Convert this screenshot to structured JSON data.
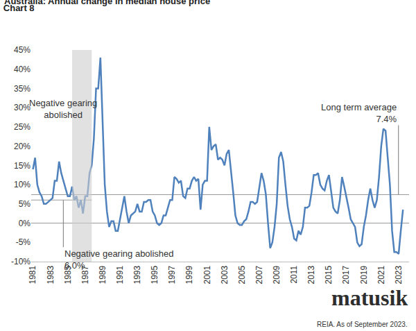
{
  "chart_data": {
    "type": "line",
    "title": "Chart 8",
    "subtitle": "Australia: Annual change in median house price",
    "source": "REIA. As of September 2023.",
    "logo": "matusik",
    "color": "#4f81bd",
    "grid": false,
    "xlim": [
      1980.8,
      2024.2
    ],
    "xticks": [
      1981,
      1983,
      1985,
      1987,
      1989,
      1991,
      1993,
      1995,
      1997,
      1999,
      2001,
      2003,
      2005,
      2007,
      2009,
      2011,
      2013,
      2015,
      2017,
      2019,
      2021,
      2023
    ],
    "ylim": [
      -10,
      45
    ],
    "yticks": [
      {
        "value": -10,
        "label": "-10%"
      },
      {
        "value": -5,
        "label": "-5%"
      },
      {
        "value": 0,
        "label": "0%"
      },
      {
        "value": 5,
        "label": "5%"
      },
      {
        "value": 10,
        "label": "10%"
      },
      {
        "value": 15,
        "label": "15%"
      },
      {
        "value": 20,
        "label": "20%"
      },
      {
        "value": 25,
        "label": "25%"
      },
      {
        "value": 30,
        "label": "30%"
      },
      {
        "value": 35,
        "label": "35%"
      },
      {
        "value": 40,
        "label": "40%"
      },
      {
        "value": 45,
        "label": "45%"
      }
    ],
    "shaded_period": {
      "label": "Negative gearing abolished",
      "x": [
        1985.5,
        1987.75
      ]
    },
    "negative_gearing_level": {
      "label": "Negative gearing abolished",
      "value": 6.0,
      "value_label": "6.0%"
    },
    "average": {
      "label": "Long term average",
      "value": 7.4,
      "value_label": "7.4%"
    },
    "x": [
      1981,
      1981.25,
      1981.5,
      1981.75,
      1982,
      1982.25,
      1982.5,
      1982.75,
      1983,
      1983.25,
      1983.5,
      1983.75,
      1984,
      1984.25,
      1984.5,
      1984.75,
      1985,
      1985.25,
      1985.5,
      1985.75,
      1986,
      1986.25,
      1986.5,
      1986.75,
      1987,
      1987.25,
      1987.5,
      1987.75,
      1988,
      1988.25,
      1988.5,
      1988.75,
      1989,
      1989.25,
      1989.5,
      1989.75,
      1990,
      1990.25,
      1990.5,
      1990.75,
      1991,
      1991.25,
      1991.5,
      1991.75,
      1992,
      1992.25,
      1992.5,
      1992.75,
      1993,
      1993.25,
      1993.5,
      1993.75,
      1994,
      1994.25,
      1994.5,
      1994.75,
      1995,
      1995.25,
      1995.5,
      1995.75,
      1996,
      1996.25,
      1996.5,
      1996.75,
      1997,
      1997.25,
      1997.5,
      1997.75,
      1998,
      1998.25,
      1998.5,
      1998.75,
      1999,
      1999.25,
      1999.5,
      1999.75,
      2000,
      2000.25,
      2000.5,
      2000.75,
      2001,
      2001.25,
      2001.5,
      2001.75,
      2002,
      2002.25,
      2002.5,
      2002.75,
      2003,
      2003.25,
      2003.5,
      2003.75,
      2004,
      2004.25,
      2004.5,
      2004.75,
      2005,
      2005.25,
      2005.5,
      2005.75,
      2006,
      2006.25,
      2006.5,
      2006.75,
      2007,
      2007.25,
      2007.5,
      2007.75,
      2008,
      2008.25,
      2008.5,
      2008.75,
      2009,
      2009.25,
      2009.5,
      2009.75,
      2010,
      2010.25,
      2010.5,
      2010.75,
      2011,
      2011.25,
      2011.5,
      2011.75,
      2012,
      2012.25,
      2012.5,
      2012.75,
      2013,
      2013.25,
      2013.5,
      2013.75,
      2014,
      2014.25,
      2014.5,
      2014.75,
      2015,
      2015.25,
      2015.5,
      2015.75,
      2016,
      2016.25,
      2016.5,
      2016.75,
      2017,
      2017.25,
      2017.5,
      2017.75,
      2018,
      2018.25,
      2018.5,
      2018.75,
      2019,
      2019.25,
      2019.5,
      2019.75,
      2020,
      2020.25,
      2020.5,
      2020.75,
      2021,
      2021.25,
      2021.5,
      2021.75,
      2022,
      2022.25,
      2022.5,
      2022.75,
      2023,
      2023.25,
      2023.5
    ],
    "values": [
      14,
      17,
      10,
      8,
      7,
      5,
      5,
      5.5,
      6,
      6.5,
      11,
      11,
      16,
      13,
      11,
      9,
      7,
      7,
      9.5,
      6,
      7,
      4,
      6,
      2.5,
      7,
      7,
      13,
      15,
      22,
      35,
      35,
      43,
      25,
      10,
      3,
      -1,
      0.5,
      0.5,
      -2,
      -2,
      1,
      4,
      7,
      3,
      0,
      2,
      2.5,
      3,
      5,
      3,
      3,
      5.5,
      5.5,
      6,
      6,
      3,
      2,
      0,
      -0.5,
      0,
      2,
      2,
      4,
      6,
      6,
      12,
      11.5,
      10.5,
      11,
      7,
      6.5,
      9,
      9,
      11,
      12,
      11,
      11.5,
      3.5,
      10,
      11,
      11,
      25,
      19,
      20,
      20.5,
      16.5,
      17,
      16.5,
      15,
      18,
      19,
      14,
      8,
      2,
      0,
      -0.5,
      -0.5,
      0.5,
      1,
      3,
      5.5,
      5.5,
      5,
      5.5,
      9,
      13,
      11,
      7.5,
      0,
      -6.5,
      -5,
      -1,
      5,
      17,
      18.5,
      16,
      10,
      4.5,
      1,
      -1,
      -4,
      -4.5,
      -2,
      -3,
      -1,
      4,
      4,
      4.5,
      8,
      12.5,
      12.5,
      13,
      10,
      9,
      8.5,
      11,
      12.5,
      8,
      4,
      3,
      2.5,
      6,
      12,
      9.5,
      7,
      4,
      1,
      0,
      -1,
      -5,
      -6,
      -5.5,
      -1,
      2,
      6,
      9,
      6,
      4,
      6,
      12,
      20,
      24.5,
      24,
      17,
      10,
      -2,
      -7.5,
      -7.5,
      -8,
      -2,
      3.5
    ]
  }
}
